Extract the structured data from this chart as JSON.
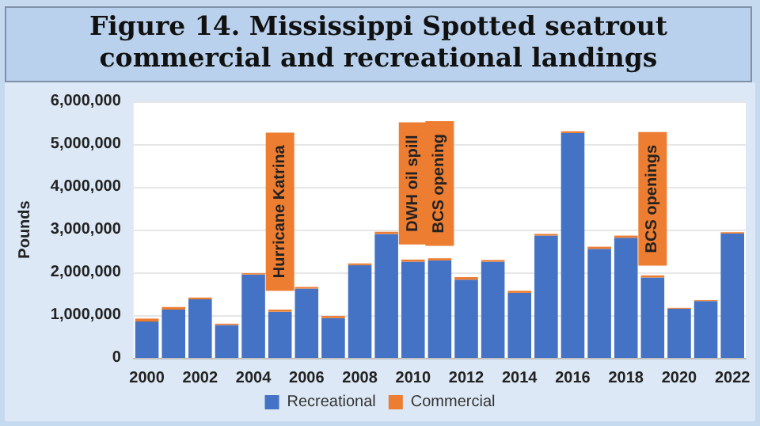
{
  "chart_data": {
    "type": "bar",
    "title": "Figure 14. Mississippi Spotted seatrout commercial and recreational landings",
    "ylabel": "Pounds",
    "categories": [
      "2000",
      null,
      "2002",
      null,
      "2004",
      null,
      "2006",
      null,
      "2008",
      null,
      "2010",
      null,
      "2012",
      null,
      "2014",
      null,
      "2016",
      null,
      "2018",
      null,
      "2020",
      null,
      "2022"
    ],
    "stacked": true,
    "series": [
      {
        "name": "Recreational",
        "color": "#4472c4",
        "values": [
          850000,
          1130000,
          1370000,
          770000,
          1950000,
          1080000,
          1620000,
          930000,
          2170000,
          2900000,
          2250000,
          2280000,
          1830000,
          2250000,
          1520000,
          2860000,
          5260000,
          2550000,
          2810000,
          1880000,
          1150000,
          1330000,
          2910000
        ]
      },
      {
        "name": "Commercial",
        "color": "#ed7d31",
        "values": [
          70000,
          60000,
          40000,
          30000,
          30000,
          50000,
          40000,
          50000,
          40000,
          50000,
          50000,
          50000,
          60000,
          40000,
          50000,
          40000,
          40000,
          50000,
          50000,
          50000,
          20000,
          20000,
          30000
        ]
      }
    ],
    "ylim": [
      0,
      6000000
    ],
    "yticks": [
      0,
      {
        "value": 1000000,
        "label": "1,000,000"
      },
      {
        "value": 2000000,
        "label": "2,000,000"
      },
      {
        "value": 3000000,
        "label": "3,000,000"
      },
      {
        "value": 4000000,
        "label": "4,000,000"
      },
      {
        "value": 5000000,
        "label": "5,000,000"
      },
      {
        "value": 6000000,
        "label": "6,000,000"
      }
    ],
    "grid": "y",
    "legend": "bottom",
    "annotations": [
      "Hurricane Katrina",
      "DWH oil spill",
      "BCS opening",
      "BCS openings"
    ]
  }
}
